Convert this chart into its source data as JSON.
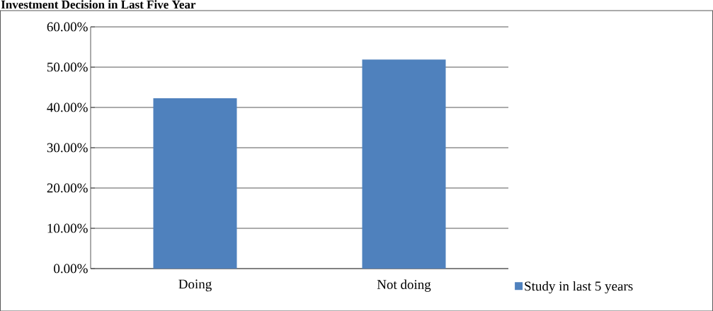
{
  "chart_data": {
    "type": "bar",
    "title": "Investment Decision in Last Five Year",
    "categories": [
      "Doing",
      "Not doing"
    ],
    "series": [
      {
        "name": "Study in last 5 years",
        "color": "#4f81bd",
        "values": [
          42.3,
          51.9
        ]
      }
    ],
    "ylim": [
      0,
      60
    ],
    "yticks": [
      {
        "value": 0,
        "label": "0.00%"
      },
      {
        "value": 10,
        "label": "10.00%"
      },
      {
        "value": 20,
        "label": "20.00%"
      },
      {
        "value": 30,
        "label": "30.00%"
      },
      {
        "value": 40,
        "label": "40.00%"
      },
      {
        "value": 50,
        "label": "50.00%"
      },
      {
        "value": 60,
        "label": "60.00%"
      }
    ],
    "grid": "y",
    "legend": "right"
  }
}
